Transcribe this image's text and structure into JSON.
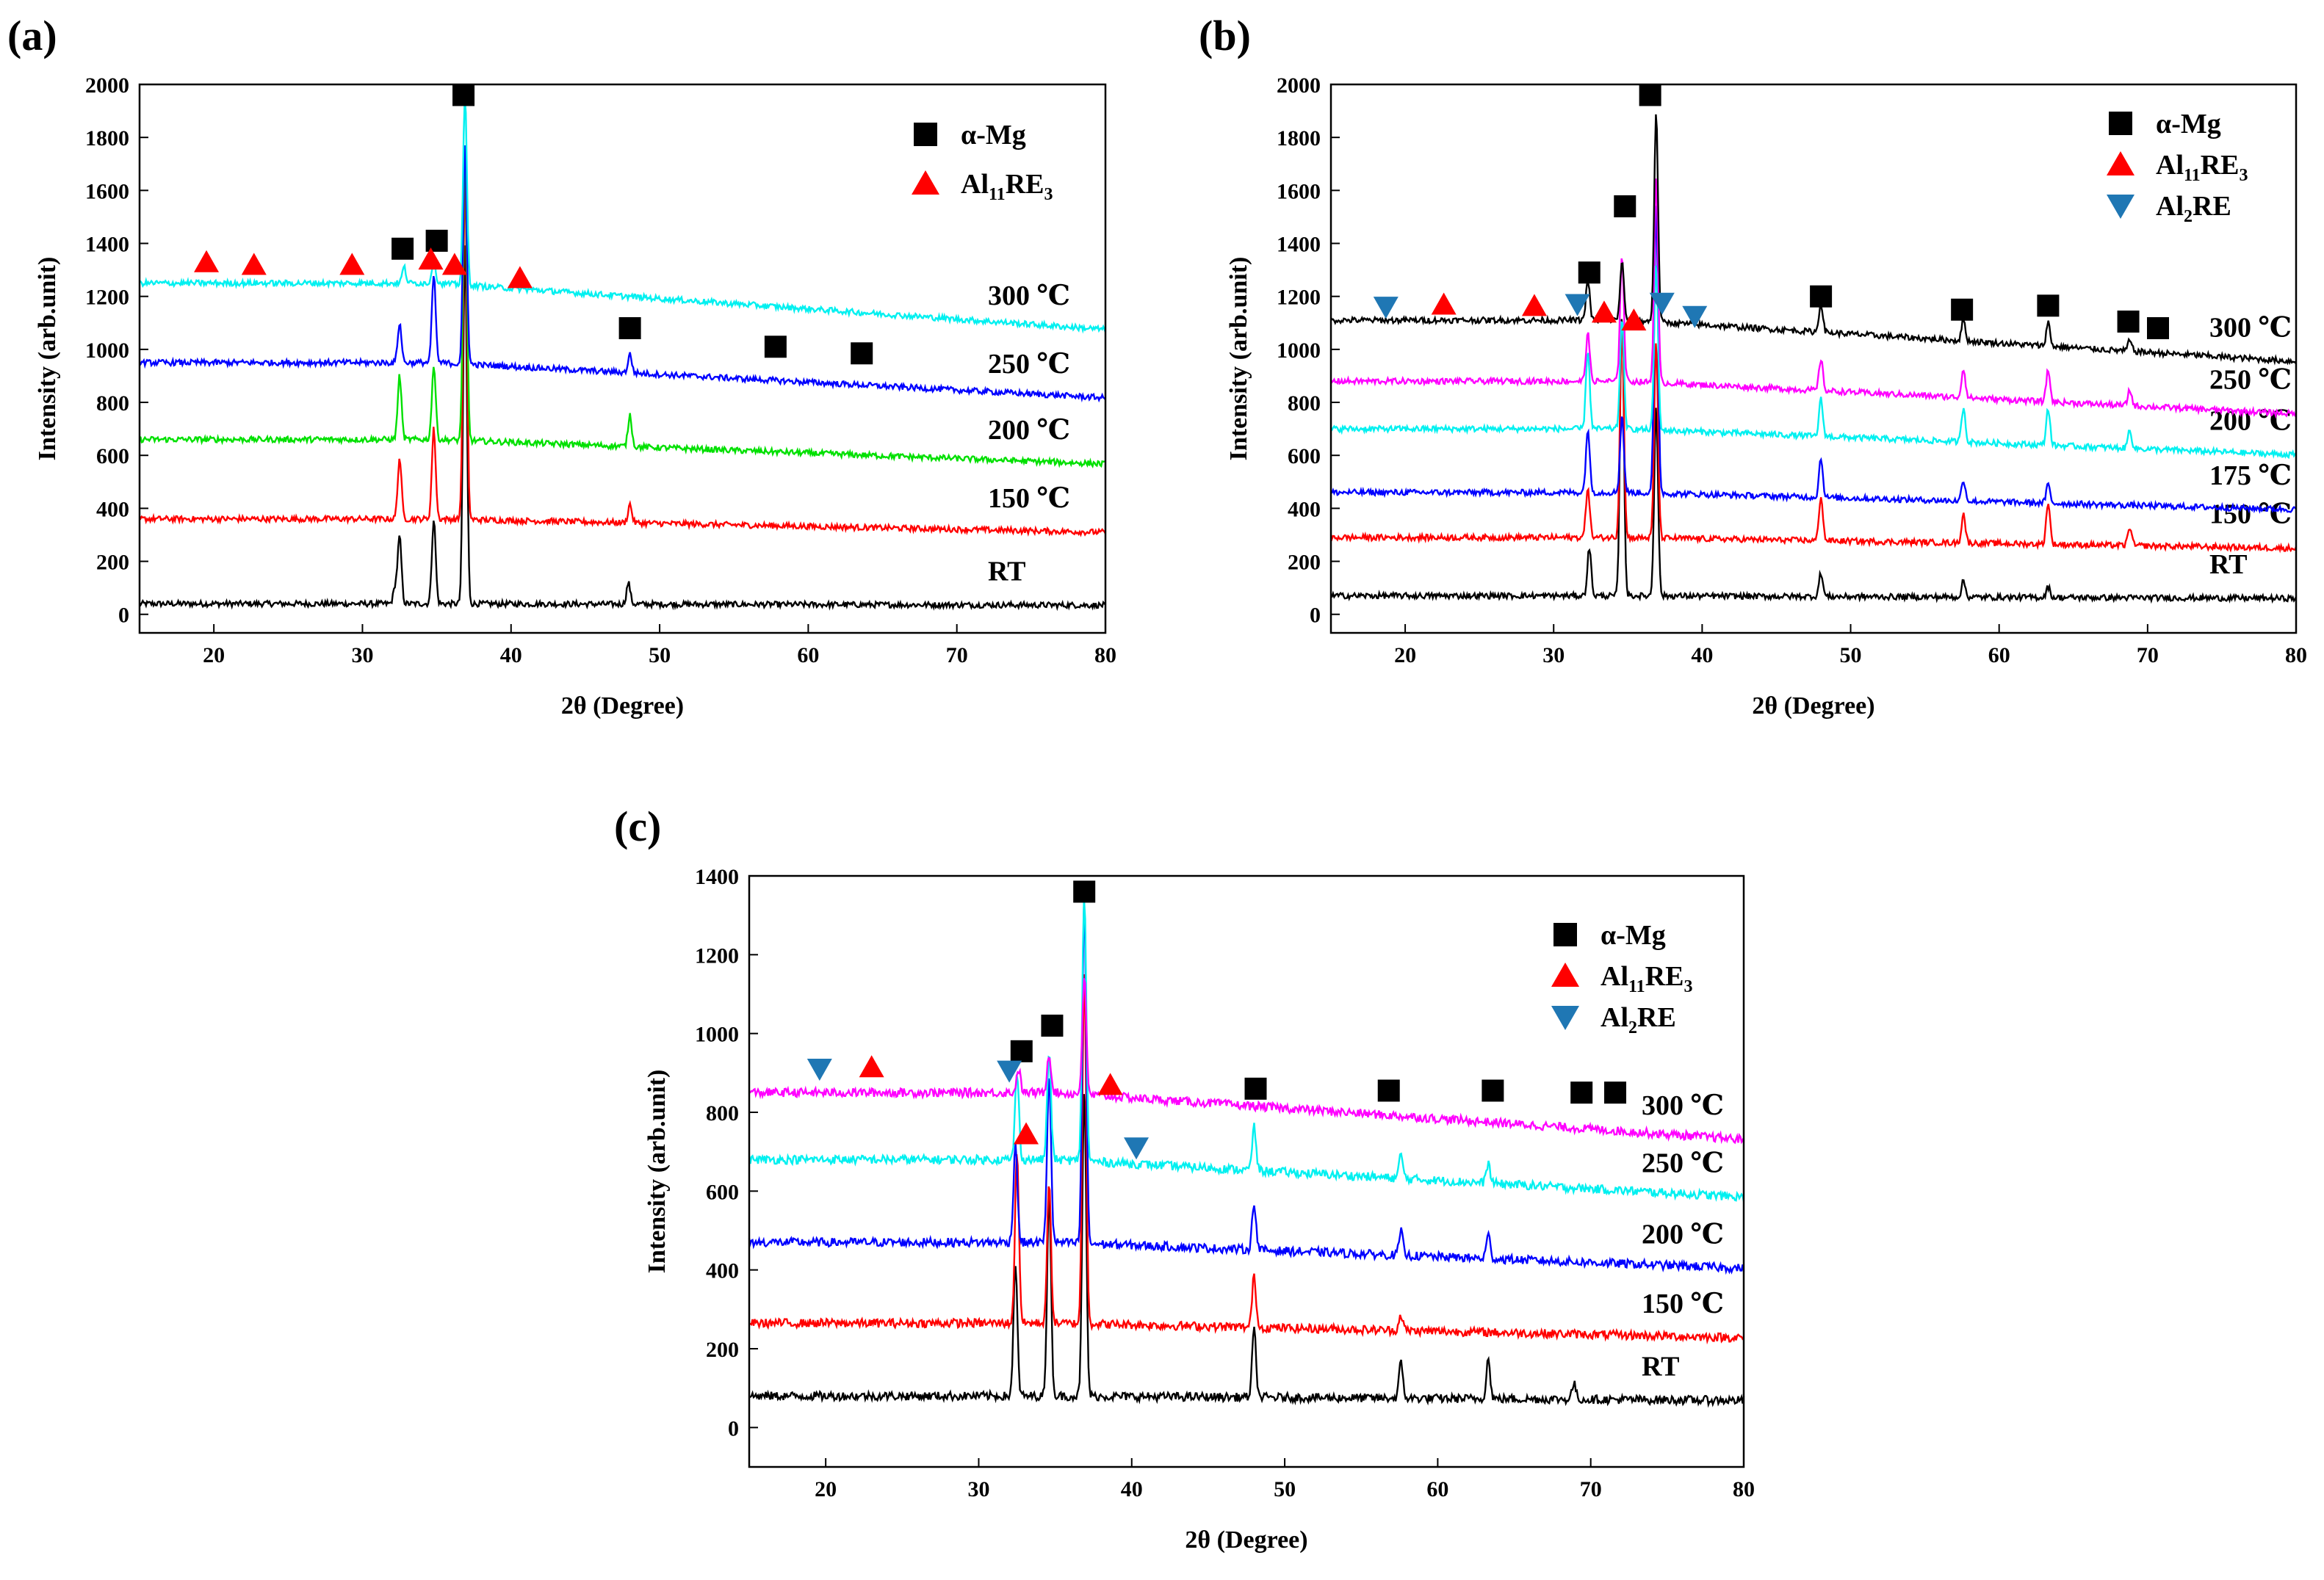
{
  "chart_data": [
    {
      "panel": "(a)",
      "type": "line",
      "xlabel": "2θ  (Degree)",
      "ylabel": "Intensity (arb.unit)",
      "xlim": [
        15,
        80
      ],
      "ylim": [
        -70,
        2000
      ],
      "xticks": [
        20,
        30,
        40,
        50,
        60,
        70,
        80
      ],
      "yticks": [
        0,
        200,
        400,
        600,
        800,
        1000,
        1200,
        1400,
        1600,
        1800,
        2000
      ],
      "legend": [
        {
          "marker": "square",
          "color": "#000000",
          "label": "α-Mg"
        },
        {
          "marker": "triangle-up",
          "color": "#ff0000",
          "label_main": "Al",
          "label_sub": "11",
          "label_tail": "RE",
          "label_sub2": "3"
        }
      ],
      "series": [
        {
          "name": "RT",
          "label": "RT",
          "color": "#000000",
          "baseline": 40,
          "peaks": [
            [
              32.2,
              60
            ],
            [
              32.5,
              250
            ],
            [
              34.8,
              320
            ],
            [
              36.9,
              1360
            ],
            [
              47.9,
              80
            ]
          ]
        },
        {
          "name": "150 ℃",
          "label": "150 ℃",
          "color": "#ff0000",
          "baseline": 360,
          "peaks": [
            [
              32.5,
              230
            ],
            [
              34.8,
              340
            ],
            [
              36.9,
              1290
            ],
            [
              48.0,
              70
            ]
          ]
        },
        {
          "name": "200 ℃",
          "label": "200 ℃",
          "color": "#00e000",
          "baseline": 660,
          "peaks": [
            [
              32.5,
              240
            ],
            [
              34.8,
              280
            ],
            [
              36.9,
              1110
            ],
            [
              48.0,
              120
            ]
          ]
        },
        {
          "name": "250 ℃",
          "label": "250 ℃",
          "color": "#0000ff",
          "baseline": 950,
          "peaks": [
            [
              32.5,
              150
            ],
            [
              34.8,
              330
            ],
            [
              36.9,
              830
            ],
            [
              48.0,
              70
            ]
          ]
        },
        {
          "name": "300 ℃",
          "label": "300 ℃",
          "color": "#00f0f0",
          "baseline": 1250,
          "peaks": [
            [
              32.8,
              60
            ],
            [
              34.8,
              90
            ],
            [
              36.9,
              710
            ]
          ]
        }
      ],
      "markers": [
        {
          "type": "square",
          "x": 32.7,
          "y": 1380
        },
        {
          "type": "square",
          "x": 35.0,
          "y": 1410
        },
        {
          "type": "square",
          "x": 36.8,
          "y": 1960
        },
        {
          "type": "square",
          "x": 48.0,
          "y": 1080
        },
        {
          "type": "square",
          "x": 57.8,
          "y": 1010
        },
        {
          "type": "square",
          "x": 63.6,
          "y": 985
        },
        {
          "type": "triangle-up",
          "x": 19.5,
          "y": 1330
        },
        {
          "type": "triangle-up",
          "x": 22.7,
          "y": 1320
        },
        {
          "type": "triangle-up",
          "x": 29.3,
          "y": 1320
        },
        {
          "type": "triangle-up",
          "x": 34.6,
          "y": 1340
        },
        {
          "type": "triangle-up",
          "x": 36.2,
          "y": 1320
        },
        {
          "type": "triangle-up",
          "x": 40.6,
          "y": 1270
        }
      ]
    },
    {
      "panel": "(b)",
      "type": "line",
      "xlabel": "2θ  (Degree)",
      "ylabel": "Intensity (arb.unit)",
      "xlim": [
        15,
        80
      ],
      "ylim": [
        -70,
        2000
      ],
      "xticks": [
        20,
        30,
        40,
        50,
        60,
        70,
        80
      ],
      "yticks": [
        0,
        200,
        400,
        600,
        800,
        1000,
        1200,
        1400,
        1600,
        1800,
        2000
      ],
      "legend": [
        {
          "marker": "square",
          "color": "#000000",
          "label": "α-Mg"
        },
        {
          "marker": "triangle-up",
          "color": "#ff0000",
          "label_main": "Al",
          "label_sub": "11",
          "label_tail": "RE",
          "label_sub2": "3"
        },
        {
          "marker": "triangle-down",
          "color": "#1f77b4",
          "label_main": "Al",
          "label_sub": "2",
          "label_tail": "RE",
          "label_sub2": ""
        }
      ],
      "series": [
        {
          "name": "RT",
          "label": "RT",
          "color": "#000000",
          "baseline": 70,
          "peaks": [
            [
              32.4,
              180
            ],
            [
              34.6,
              1080
            ],
            [
              36.9,
              720
            ],
            [
              48.0,
              90
            ],
            [
              57.6,
              60
            ],
            [
              63.3,
              40
            ]
          ]
        },
        {
          "name": "150 ℃",
          "label": "150 ℃",
          "color": "#ff0000",
          "baseline": 290,
          "peaks": [
            [
              32.3,
              190
            ],
            [
              34.6,
              820
            ],
            [
              36.9,
              740
            ],
            [
              48.0,
              170
            ],
            [
              57.6,
              110
            ],
            [
              63.3,
              160
            ],
            [
              68.8,
              70
            ]
          ]
        },
        {
          "name": "175 ℃",
          "label": "175 ℃",
          "color": "#0000ff",
          "baseline": 460,
          "peaks": [
            [
              32.3,
              240
            ],
            [
              34.6,
              290
            ],
            [
              36.9,
              1100
            ],
            [
              48.0,
              150
            ],
            [
              57.6,
              80
            ],
            [
              63.3,
              70
            ]
          ]
        },
        {
          "name": "200 ℃",
          "label": "200 ℃",
          "color": "#00f0f0",
          "baseline": 700,
          "peaks": [
            [
              32.3,
              300
            ],
            [
              34.6,
              420
            ],
            [
              36.9,
              630
            ],
            [
              48.0,
              140
            ],
            [
              57.6,
              130
            ],
            [
              63.3,
              140
            ],
            [
              68.8,
              70
            ]
          ]
        },
        {
          "name": "250 ℃",
          "label": "250 ℃",
          "color": "#ff00ff",
          "baseline": 880,
          "peaks": [
            [
              32.3,
              180
            ],
            [
              34.6,
              480
            ],
            [
              36.9,
              780
            ],
            [
              48.0,
              120
            ],
            [
              57.6,
              110
            ],
            [
              63.3,
              120
            ],
            [
              68.8,
              60
            ]
          ]
        },
        {
          "name": "300 ℃",
          "label": "300 ℃",
          "color": "#000000",
          "baseline": 1110,
          "peaks": [
            [
              32.3,
              150
            ],
            [
              34.6,
              220
            ],
            [
              36.9,
              790
            ],
            [
              48.0,
              110
            ],
            [
              57.6,
              80
            ],
            [
              63.3,
              90
            ],
            [
              68.8,
              40
            ]
          ]
        }
      ],
      "markers": [
        {
          "type": "square",
          "x": 32.4,
          "y": 1290
        },
        {
          "type": "square",
          "x": 34.8,
          "y": 1540
        },
        {
          "type": "square",
          "x": 36.5,
          "y": 1960
        },
        {
          "type": "square",
          "x": 48.0,
          "y": 1200
        },
        {
          "type": "square",
          "x": 57.5,
          "y": 1150
        },
        {
          "type": "square",
          "x": 63.3,
          "y": 1165
        },
        {
          "type": "square",
          "x": 68.7,
          "y": 1105
        },
        {
          "type": "square",
          "x": 70.7,
          "y": 1080
        },
        {
          "type": "triangle-up",
          "x": 22.6,
          "y": 1170
        },
        {
          "type": "triangle-up",
          "x": 28.7,
          "y": 1165
        },
        {
          "type": "triangle-up",
          "x": 33.4,
          "y": 1140
        },
        {
          "type": "triangle-up",
          "x": 35.4,
          "y": 1110
        },
        {
          "type": "triangle-down",
          "x": 18.7,
          "y": 1160
        },
        {
          "type": "triangle-down",
          "x": 31.6,
          "y": 1170
        },
        {
          "type": "triangle-down",
          "x": 37.3,
          "y": 1175
        },
        {
          "type": "triangle-down",
          "x": 39.5,
          "y": 1125
        }
      ]
    },
    {
      "panel": "(c)",
      "type": "line",
      "xlabel": "2θ  (Degree)",
      "ylabel": "Intensity (arb.unit)",
      "xlim": [
        15,
        80
      ],
      "ylim": [
        -100,
        1400
      ],
      "xticks": [
        20,
        30,
        40,
        50,
        60,
        70,
        80
      ],
      "yticks": [
        0,
        200,
        400,
        600,
        800,
        1000,
        1200,
        1400
      ],
      "legend": [
        {
          "marker": "square",
          "color": "#000000",
          "label": "α-Mg"
        },
        {
          "marker": "triangle-up",
          "color": "#ff0000",
          "label_main": "Al",
          "label_sub": "11",
          "label_tail": "RE",
          "label_sub2": "3"
        },
        {
          "marker": "triangle-down",
          "color": "#1f77b4",
          "label_main": "Al",
          "label_sub": "2",
          "label_tail": "RE",
          "label_sub2": ""
        }
      ],
      "series": [
        {
          "name": "RT",
          "label": "RT",
          "color": "#000000",
          "baseline": 80,
          "peaks": [
            [
              32.4,
              330
            ],
            [
              34.6,
              520
            ],
            [
              36.9,
              770
            ],
            [
              48.0,
              170
            ],
            [
              57.6,
              90
            ],
            [
              63.3,
              100
            ],
            [
              68.9,
              40
            ]
          ]
        },
        {
          "name": "150 ℃",
          "label": "150 ℃",
          "color": "#ff0000",
          "baseline": 265,
          "peaks": [
            [
              32.5,
              440
            ],
            [
              34.6,
              350
            ],
            [
              36.9,
              890
            ],
            [
              48.0,
              130
            ],
            [
              57.6,
              40
            ]
          ]
        },
        {
          "name": "200 ℃",
          "label": "200 ℃",
          "color": "#0000ff",
          "baseline": 470,
          "peaks": [
            [
              32.4,
              250
            ],
            [
              34.6,
              430
            ],
            [
              36.9,
              870
            ],
            [
              48.0,
              120
            ],
            [
              57.6,
              60
            ],
            [
              63.3,
              60
            ]
          ]
        },
        {
          "name": "250 ℃",
          "label": "250 ℃",
          "color": "#00f0f0",
          "baseline": 680,
          "peaks": [
            [
              32.5,
              220
            ],
            [
              34.6,
              270
            ],
            [
              36.9,
              680
            ],
            [
              48.0,
              110
            ],
            [
              57.6,
              60
            ],
            [
              63.3,
              50
            ]
          ]
        },
        {
          "name": "300 ℃",
          "label": "300 ℃",
          "color": "#ff00ff",
          "baseline": 850,
          "peaks": [
            [
              32.6,
              60
            ],
            [
              34.6,
              100
            ],
            [
              36.9,
              300
            ]
          ]
        }
      ],
      "markers": [
        {
          "type": "square",
          "x": 32.8,
          "y": 955
        },
        {
          "type": "square",
          "x": 34.8,
          "y": 1020
        },
        {
          "type": "square",
          "x": 36.9,
          "y": 1360
        },
        {
          "type": "square",
          "x": 48.1,
          "y": 860
        },
        {
          "type": "square",
          "x": 56.8,
          "y": 855
        },
        {
          "type": "square",
          "x": 63.6,
          "y": 855
        },
        {
          "type": "square",
          "x": 69.4,
          "y": 850
        },
        {
          "type": "square",
          "x": 71.6,
          "y": 850
        },
        {
          "type": "triangle-up",
          "x": 23.0,
          "y": 915
        },
        {
          "type": "triangle-up",
          "x": 33.1,
          "y": 745
        },
        {
          "type": "triangle-up",
          "x": 38.6,
          "y": 870
        },
        {
          "type": "triangle-down",
          "x": 19.6,
          "y": 910
        },
        {
          "type": "triangle-down",
          "x": 32.0,
          "y": 905
        },
        {
          "type": "triangle-down",
          "x": 40.3,
          "y": 710
        }
      ]
    }
  ]
}
